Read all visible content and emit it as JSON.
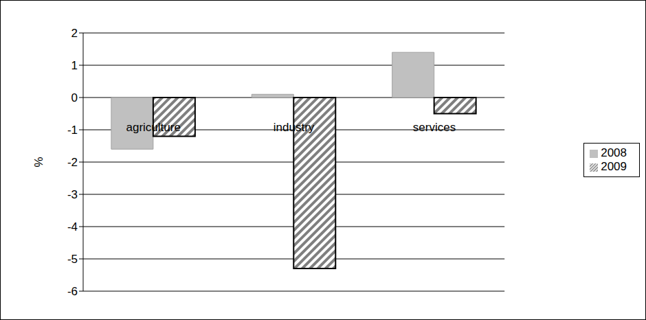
{
  "chart_data": {
    "type": "bar",
    "categories": [
      "agriculture",
      "industry",
      "services"
    ],
    "y_label": "%",
    "series": [
      {
        "name": "2008",
        "color": "#c0c0c0",
        "values": [
          -1.6,
          0.1,
          1.4
        ]
      },
      {
        "name": "2009",
        "color": "#7f7f7f",
        "values": [
          -1.2,
          -5.3,
          -0.5
        ]
      }
    ],
    "ylim": [
      -6,
      2
    ],
    "yticks": [
      -6,
      -5,
      -4,
      -3,
      -2,
      -1,
      0,
      1,
      2
    ],
    "grid": true,
    "legend": "right"
  }
}
